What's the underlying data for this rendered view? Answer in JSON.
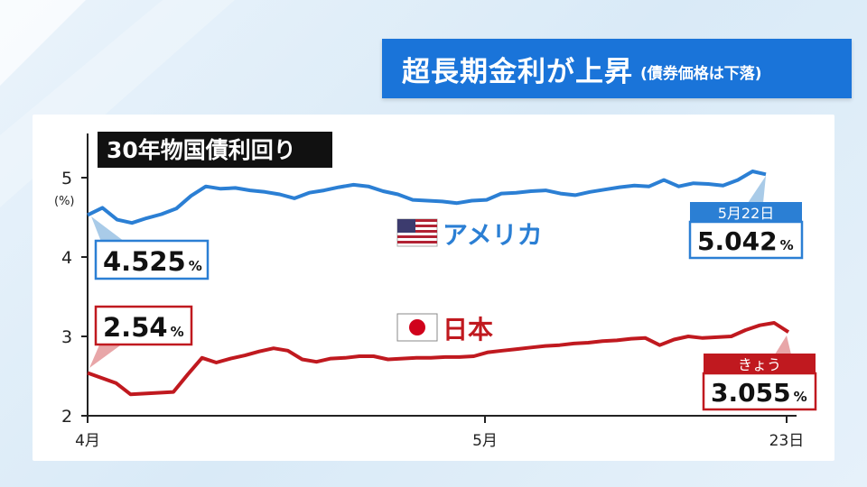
{
  "headline": {
    "main": "超長期金利が上昇",
    "sub": "(債券価格は下落)"
  },
  "colors": {
    "us": "#2b7fd4",
    "jp": "#c0191f",
    "headline_bg": "#1a74d9"
  },
  "chart_data": {
    "type": "line",
    "title": "30年物国債利回り",
    "ylabel": "(%)",
    "ylim": [
      2,
      5.5
    ],
    "yticks": [
      "2",
      "3",
      "4",
      "5"
    ],
    "xticks": [
      "4月",
      "5月",
      "23日"
    ],
    "grid": false,
    "series": [
      {
        "name": "アメリカ",
        "flag": "us-flag",
        "points": [
          [
            0,
            4.53
          ],
          [
            1,
            4.62
          ],
          [
            2,
            4.47
          ],
          [
            3,
            4.43
          ],
          [
            4,
            4.49
          ],
          [
            5,
            4.54
          ],
          [
            6,
            4.61
          ],
          [
            7,
            4.77
          ],
          [
            8,
            4.89
          ],
          [
            9,
            4.86
          ],
          [
            10,
            4.87
          ],
          [
            11,
            4.84
          ],
          [
            12,
            4.82
          ],
          [
            13,
            4.79
          ],
          [
            14,
            4.74
          ],
          [
            15,
            4.81
          ],
          [
            16,
            4.84
          ],
          [
            17,
            4.88
          ],
          [
            18,
            4.91
          ],
          [
            19,
            4.89
          ],
          [
            20,
            4.83
          ],
          [
            21,
            4.79
          ],
          [
            22,
            4.72
          ],
          [
            23,
            4.71
          ],
          [
            24,
            4.7
          ],
          [
            25,
            4.68
          ],
          [
            26,
            4.71
          ],
          [
            27,
            4.72
          ],
          [
            28,
            4.8
          ],
          [
            29,
            4.81
          ],
          [
            30,
            4.83
          ],
          [
            31,
            4.84
          ],
          [
            32,
            4.8
          ],
          [
            33,
            4.78
          ],
          [
            34,
            4.82
          ],
          [
            35,
            4.85
          ],
          [
            36,
            4.88
          ],
          [
            37,
            4.9
          ],
          [
            38,
            4.89
          ],
          [
            39,
            4.97
          ],
          [
            40,
            4.89
          ],
          [
            41,
            4.93
          ],
          [
            42,
            4.92
          ],
          [
            43,
            4.9
          ],
          [
            44,
            4.97
          ],
          [
            45,
            5.08
          ],
          [
            45.9,
            5.042
          ]
        ]
      },
      {
        "name": "日本",
        "flag": "jp-flag",
        "points": [
          [
            0,
            2.54
          ],
          [
            2,
            2.41
          ],
          [
            3,
            2.27
          ],
          [
            4,
            2.28
          ],
          [
            5,
            2.29
          ],
          [
            6,
            2.3
          ],
          [
            7,
            2.52
          ],
          [
            8,
            2.73
          ],
          [
            9,
            2.67
          ],
          [
            10,
            2.72
          ],
          [
            11,
            2.76
          ],
          [
            12,
            2.81
          ],
          [
            13,
            2.85
          ],
          [
            14,
            2.82
          ],
          [
            15,
            2.71
          ],
          [
            16,
            2.68
          ],
          [
            17,
            2.72
          ],
          [
            18,
            2.73
          ],
          [
            19,
            2.75
          ],
          [
            20,
            2.75
          ],
          [
            21,
            2.71
          ],
          [
            22,
            2.72
          ],
          [
            23,
            2.73
          ],
          [
            24,
            2.73
          ],
          [
            25,
            2.74
          ],
          [
            26,
            2.74
          ],
          [
            27,
            2.75
          ],
          [
            28,
            2.8
          ],
          [
            29,
            2.82
          ],
          [
            30,
            2.84
          ],
          [
            31,
            2.86
          ],
          [
            32,
            2.88
          ],
          [
            33,
            2.89
          ],
          [
            34,
            2.91
          ],
          [
            35,
            2.92
          ],
          [
            36,
            2.94
          ],
          [
            37,
            2.95
          ],
          [
            38,
            2.97
          ],
          [
            39,
            2.98
          ],
          [
            40,
            2.89
          ],
          [
            41,
            2.96
          ],
          [
            42,
            3.0
          ],
          [
            43,
            2.98
          ],
          [
            44,
            2.99
          ],
          [
            45,
            3.0
          ],
          [
            46,
            3.08
          ],
          [
            47,
            3.14
          ],
          [
            48,
            3.17
          ],
          [
            49,
            3.055
          ]
        ]
      }
    ],
    "annotations": {
      "us_start": {
        "value": "4.525",
        "unit": "%"
      },
      "jp_start": {
        "value": "2.54",
        "unit": "%"
      },
      "us_end": {
        "date": "5月22日",
        "value": "5.042",
        "unit": "%"
      },
      "jp_end": {
        "date": "きょう",
        "value": "3.055",
        "unit": "%"
      }
    }
  }
}
